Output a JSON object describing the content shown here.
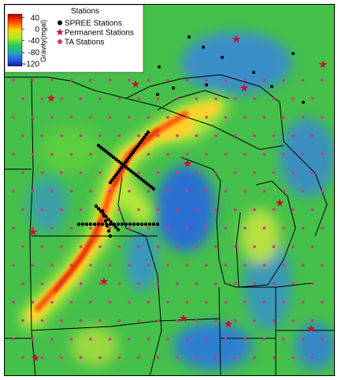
{
  "colorbar": {
    "label": "Gravity(mgal)",
    "ticks": [
      40,
      0,
      -40,
      -80,
      -120
    ],
    "lim": [
      -128,
      52
    ]
  },
  "legend": {
    "title": "Stations",
    "entries": [
      {
        "name": "SPREE Stations",
        "color": "#000000",
        "marker": "dot"
      },
      {
        "name": "Permanent Stations",
        "color": "#c8102e",
        "marker": "star"
      },
      {
        "name": "TA Stations",
        "color": "#d63384",
        "marker": "dot"
      }
    ]
  }
}
